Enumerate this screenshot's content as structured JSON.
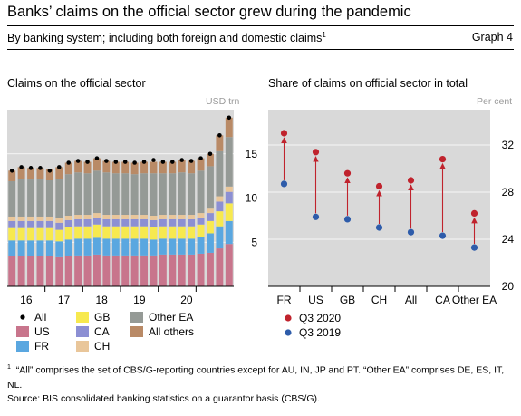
{
  "title": "Banks’ claims on the official sector grew during the pandemic",
  "subtitle": "By banking system; including both foreign and domestic claims",
  "subtitle_note": "1",
  "graph_label": "Graph 4",
  "colors": {
    "US": "#c8758c",
    "FR": "#5aa7e0",
    "GB": "#f7e94f",
    "CA": "#8c8fd3",
    "CH": "#e9c69a",
    "Other EA": "#959a96",
    "All others": "#b98a66",
    "All": "#000000",
    "Q3 2020": "#c0232d",
    "Q3 2019": "#2e5caa",
    "panel_bg": "#d9d9d9",
    "arrow": "#c0232d"
  },
  "chart_data": [
    {
      "type": "bar",
      "title": "Claims on the official sector",
      "ylabel": "USD trn",
      "ylim": [
        0,
        20
      ],
      "yticks": [
        5,
        10,
        15
      ],
      "x_tick_labels": [
        "16",
        "17",
        "18",
        "19",
        "20"
      ],
      "series": [
        {
          "name": "US",
          "values": [
            3.4,
            3.4,
            3.4,
            3.4,
            3.4,
            3.3,
            3.4,
            3.5,
            3.5,
            3.6,
            3.5,
            3.5,
            3.5,
            3.5,
            3.5,
            3.5,
            3.6,
            3.6,
            3.6,
            3.6,
            3.7,
            3.8,
            4.3,
            4.8
          ]
        },
        {
          "name": "FR",
          "values": [
            1.8,
            1.8,
            1.8,
            1.8,
            1.8,
            1.8,
            1.9,
            1.9,
            1.9,
            1.9,
            1.9,
            1.9,
            1.9,
            1.9,
            1.9,
            1.8,
            1.8,
            1.8,
            1.8,
            1.8,
            1.9,
            2.2,
            2.5,
            2.6
          ]
        },
        {
          "name": "GB",
          "values": [
            1.4,
            1.4,
            1.4,
            1.4,
            1.4,
            1.3,
            1.4,
            1.4,
            1.4,
            1.5,
            1.4,
            1.4,
            1.4,
            1.4,
            1.4,
            1.4,
            1.4,
            1.4,
            1.4,
            1.4,
            1.4,
            1.4,
            1.7,
            2.0
          ]
        },
        {
          "name": "CA",
          "values": [
            0.8,
            0.8,
            0.8,
            0.8,
            0.8,
            0.8,
            0.8,
            0.8,
            0.8,
            0.8,
            0.8,
            0.8,
            0.8,
            0.8,
            0.8,
            0.8,
            0.8,
            0.8,
            0.8,
            0.8,
            0.8,
            0.9,
            1.1,
            1.3
          ]
        },
        {
          "name": "CH",
          "values": [
            0.5,
            0.5,
            0.5,
            0.5,
            0.5,
            0.5,
            0.5,
            0.5,
            0.5,
            0.5,
            0.5,
            0.5,
            0.5,
            0.5,
            0.5,
            0.5,
            0.5,
            0.5,
            0.5,
            0.5,
            0.5,
            0.5,
            0.6,
            0.6
          ]
        },
        {
          "name": "Other EA",
          "values": [
            4.0,
            4.3,
            4.2,
            4.2,
            4.1,
            4.5,
            4.7,
            4.8,
            4.7,
            4.8,
            4.8,
            4.7,
            4.7,
            4.6,
            4.7,
            4.8,
            4.7,
            4.7,
            4.8,
            4.7,
            4.8,
            4.8,
            5.1,
            5.6
          ]
        },
        {
          "name": "All others",
          "values": [
            1.2,
            1.3,
            1.3,
            1.3,
            1.3,
            1.3,
            1.3,
            1.3,
            1.3,
            1.4,
            1.3,
            1.3,
            1.3,
            1.3,
            1.3,
            1.3,
            1.3,
            1.3,
            1.4,
            1.4,
            1.4,
            1.4,
            1.8,
            2.2
          ]
        }
      ],
      "all_values": [
        13.1,
        13.5,
        13.4,
        13.4,
        13.1,
        13.5,
        14.0,
        14.2,
        14.1,
        14.5,
        14.2,
        14.1,
        14.1,
        14.0,
        14.1,
        14.3,
        14.1,
        14.1,
        14.3,
        14.2,
        14.5,
        15.0,
        17.1,
        19.1
      ],
      "legend": [
        "All",
        "GB",
        "Other EA",
        "US",
        "CA",
        "All others",
        "FR",
        "CH"
      ]
    },
    {
      "type": "scatter",
      "title": "Share of claims on official sector in total",
      "ylabel": "Per cent",
      "ylim": [
        20,
        35
      ],
      "yticks": [
        20,
        24,
        28,
        32
      ],
      "categories": [
        "FR",
        "US",
        "GB",
        "CH",
        "All",
        "CA",
        "Other EA"
      ],
      "series": [
        {
          "name": "Q3 2020",
          "values": [
            33.0,
            31.4,
            29.6,
            28.5,
            29.0,
            30.8,
            26.2
          ]
        },
        {
          "name": "Q3 2019",
          "values": [
            28.7,
            25.9,
            25.7,
            25.0,
            24.6,
            24.3,
            23.3
          ]
        }
      ]
    }
  ],
  "footnote_marker": "1",
  "footnote": "“All” comprises the set of CBS/G-reporting countries except for AU, IN, JP and PT. “Other EA” comprises DE, ES, IT, NL.",
  "source": "Source: BIS consolidated banking statistics on a guarantor basis (CBS/G)."
}
